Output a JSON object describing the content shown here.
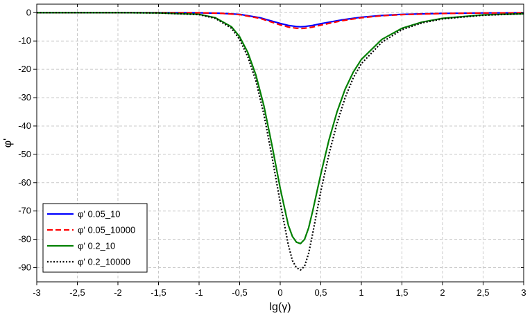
{
  "chart_data": {
    "type": "line",
    "xlabel": "lg(γ)",
    "ylabel": "φ'",
    "xlim": [
      -3,
      3
    ],
    "ylim": [
      -95,
      3
    ],
    "grid": true,
    "legend_position": "bottom-left",
    "x_ticks": [
      -3,
      -2.5,
      -2,
      -1.5,
      -1,
      -0.5,
      0,
      0.5,
      1,
      1.5,
      2,
      2.5,
      3
    ],
    "x_tick_labels": [
      "-3",
      "-2,5",
      "-2",
      "-1,5",
      "-1",
      "-0,5",
      "0",
      "0,5",
      "1",
      "1,5",
      "2",
      "2,5",
      "3"
    ],
    "y_ticks": [
      0,
      -10,
      -20,
      -30,
      -40,
      -50,
      -60,
      -70,
      -80,
      -90
    ],
    "y_tick_labels": [
      "0",
      "-10",
      "-20",
      "-30",
      "-40",
      "-50",
      "-60",
      "-70",
      "-80",
      "-90"
    ],
    "series": [
      {
        "name": "φ' 0.05_10",
        "color": "#0000ff",
        "dash": "solid",
        "x": [
          -3,
          -2.5,
          -2,
          -1.5,
          -1,
          -0.75,
          -0.5,
          -0.25,
          0,
          0.1,
          0.2,
          0.25,
          0.3,
          0.4,
          0.5,
          0.75,
          1,
          1.25,
          1.5,
          2,
          2.5,
          3
        ],
        "y": [
          0,
          0,
          0,
          0,
          -0.05,
          -0.2,
          -0.6,
          -1.8,
          -3.8,
          -4.5,
          -4.9,
          -5.0,
          -4.9,
          -4.5,
          -3.9,
          -2.6,
          -1.6,
          -1.0,
          -0.6,
          -0.25,
          -0.1,
          -0.05
        ]
      },
      {
        "name": "φ' 0.05_10000",
        "color": "#ff0000",
        "dash": "dashed",
        "x": [
          -3,
          -2.5,
          -2,
          -1.5,
          -1,
          -0.75,
          -0.5,
          -0.25,
          0,
          0.1,
          0.2,
          0.25,
          0.3,
          0.4,
          0.5,
          0.75,
          1,
          1.25,
          1.5,
          2,
          2.5,
          3
        ],
        "y": [
          0,
          0,
          0,
          0,
          -0.05,
          -0.2,
          -0.7,
          -2.0,
          -4.3,
          -5.1,
          -5.5,
          -5.6,
          -5.5,
          -5.1,
          -4.4,
          -2.9,
          -1.8,
          -1.1,
          -0.7,
          -0.3,
          -0.12,
          -0.05
        ]
      },
      {
        "name": "φ' 0.2_10",
        "color": "#008000",
        "dash": "solid",
        "x": [
          -3,
          -2,
          -1.5,
          -1,
          -0.8,
          -0.6,
          -0.5,
          -0.4,
          -0.3,
          -0.2,
          -0.1,
          0,
          0.1,
          0.15,
          0.2,
          0.25,
          0.3,
          0.35,
          0.4,
          0.5,
          0.6,
          0.7,
          0.8,
          0.9,
          1,
          1.25,
          1.5,
          1.75,
          2,
          2.5,
          3
        ],
        "y": [
          0,
          0,
          -0.1,
          -0.6,
          -1.8,
          -5,
          -8.5,
          -14,
          -22,
          -33,
          -47,
          -62,
          -75,
          -79,
          -81,
          -81.5,
          -80,
          -76,
          -70,
          -57,
          -45,
          -35,
          -27,
          -21,
          -16.5,
          -9.5,
          -5.5,
          -3.3,
          -2.0,
          -0.8,
          -0.4
        ]
      },
      {
        "name": "φ' 0.2_10000",
        "color": "#000000",
        "dash": "dotted",
        "x": [
          -3,
          -2,
          -1.5,
          -1,
          -0.8,
          -0.6,
          -0.5,
          -0.4,
          -0.3,
          -0.2,
          -0.1,
          0,
          0.1,
          0.15,
          0.2,
          0.25,
          0.3,
          0.35,
          0.4,
          0.5,
          0.6,
          0.7,
          0.8,
          0.9,
          1,
          1.25,
          1.5,
          1.75,
          2,
          2.5,
          3
        ],
        "y": [
          0,
          0,
          -0.1,
          -0.7,
          -2.0,
          -5.5,
          -9.5,
          -15.5,
          -24,
          -36,
          -51,
          -67,
          -82,
          -87.5,
          -90,
          -90.8,
          -89.5,
          -85,
          -78,
          -63,
          -50,
          -39,
          -30,
          -23,
          -18,
          -10.5,
          -6,
          -3.6,
          -2.2,
          -0.9,
          -0.4
        ]
      }
    ]
  }
}
